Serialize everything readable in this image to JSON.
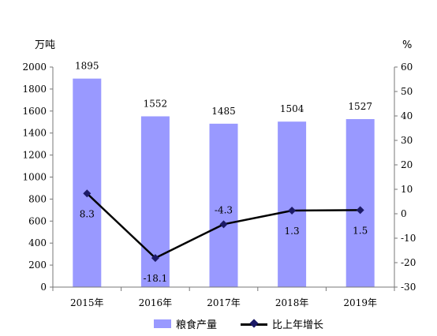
{
  "chart_data": {
    "type": "bar",
    "categories": [
      "2015年",
      "2016年",
      "2017年",
      "2018年",
      "2019年"
    ],
    "series": [
      {
        "name": "粮食产量",
        "type": "bar",
        "axis": "left",
        "values": [
          1895,
          1552,
          1485,
          1504,
          1527
        ],
        "labels": [
          "1895",
          "1552",
          "1485",
          "1504",
          "1527"
        ]
      },
      {
        "name": "比上年增长",
        "type": "line",
        "axis": "right",
        "values": [
          8.3,
          -18.1,
          -4.3,
          1.3,
          1.5
        ],
        "labels": [
          "8.3",
          "-18.1",
          "-4.3",
          "1.3",
          "1.5"
        ]
      }
    ],
    "y_left": {
      "unit": "万吨",
      "min": 0,
      "max": 2000,
      "step": 200
    },
    "y_right": {
      "unit": "%",
      "min": -30,
      "max": 60,
      "step": 10
    },
    "grid": false,
    "legend": "bottom",
    "colors": {
      "bar": "#9999ff",
      "line": "#000000",
      "marker": "#1c1a66"
    }
  }
}
